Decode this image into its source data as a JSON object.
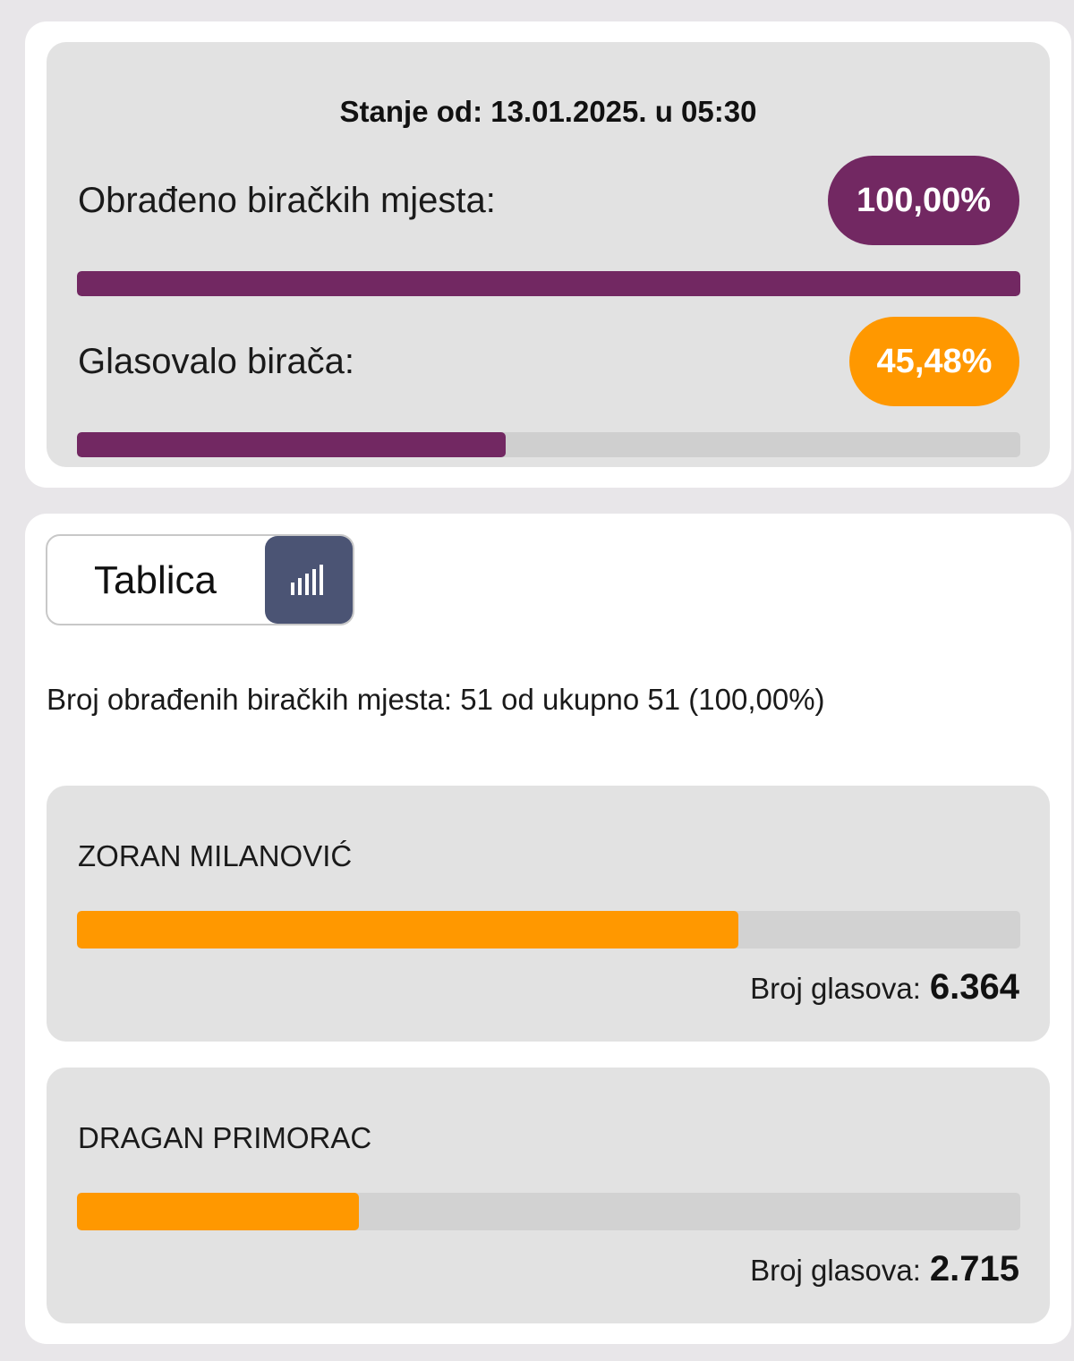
{
  "status": {
    "date_text": "Stanje od: 13.01.2025. u 05:30",
    "processed": {
      "label": "Obrađeno biračkih mjesta:",
      "badge": "100,00%",
      "fraction": 1.0
    },
    "turnout": {
      "label": "Glasovalo birača:",
      "badge": "45,48%",
      "fraction": 0.4548
    },
    "colors": {
      "purple": "#722862",
      "orange": "#ff9800"
    }
  },
  "results": {
    "toggle_label": "Tablica",
    "toggle_icon": "bar-chart-icon",
    "summary": "Broj obrađenih biračkih mjesta: 51 od ukupno 51 (100,00%)",
    "votes_label": "Broj glasova:",
    "candidates": [
      {
        "name": "ZORAN MILANOVIĆ",
        "votes": "6.364",
        "fraction": 0.701
      },
      {
        "name": "DRAGAN PRIMORAC",
        "votes": "2.715",
        "fraction": 0.299
      }
    ]
  }
}
